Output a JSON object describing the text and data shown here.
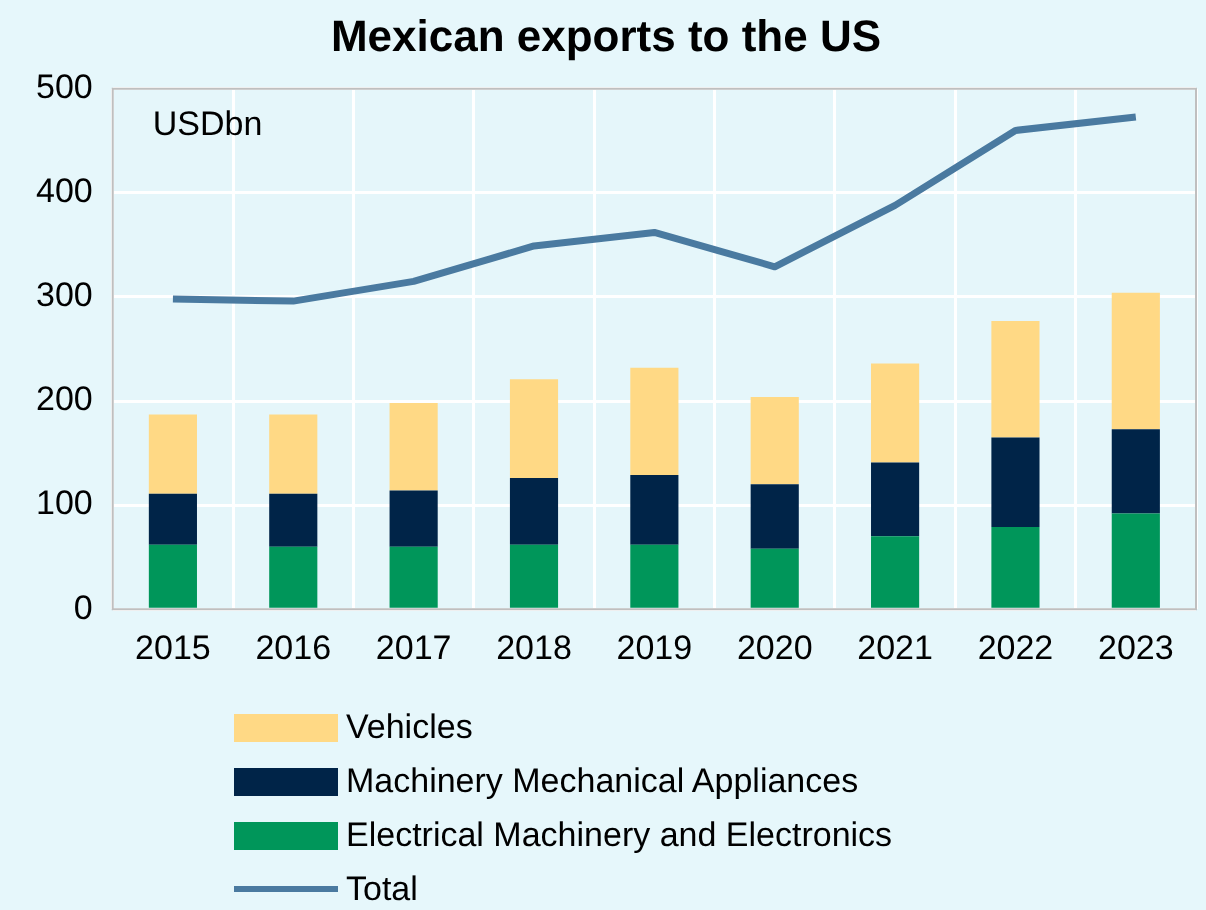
{
  "chart_data": {
    "type": "bar",
    "title": "Mexican exports to the US",
    "ylabel": "USDbn",
    "stacked": true,
    "categories": [
      "2015",
      "2016",
      "2017",
      "2018",
      "2019",
      "2020",
      "2021",
      "2022",
      "2023"
    ],
    "series": [
      {
        "name": "Electrical Machinery and Electronics",
        "color": "#00965a",
        "values": [
          62,
          60,
          60,
          62,
          62,
          58,
          70,
          79,
          92
        ]
      },
      {
        "name": "Machinery Mechanical Appliances",
        "color": "#002448",
        "values": [
          49,
          51,
          54,
          64,
          67,
          62,
          71,
          86,
          81
        ]
      },
      {
        "name": "Vehicles",
        "color": "#ffd985",
        "values": [
          76,
          76,
          84,
          95,
          103,
          84,
          95,
          112,
          131
        ]
      },
      {
        "name": "Total",
        "type": "line",
        "color": "#4a7aa0",
        "values": [
          298,
          296,
          315,
          349,
          362,
          329,
          388,
          460,
          473
        ]
      }
    ],
    "ylim": [
      0,
      500
    ],
    "yticks": [
      0,
      100,
      200,
      300,
      400,
      500
    ],
    "grid": true,
    "legend": "bottom"
  }
}
